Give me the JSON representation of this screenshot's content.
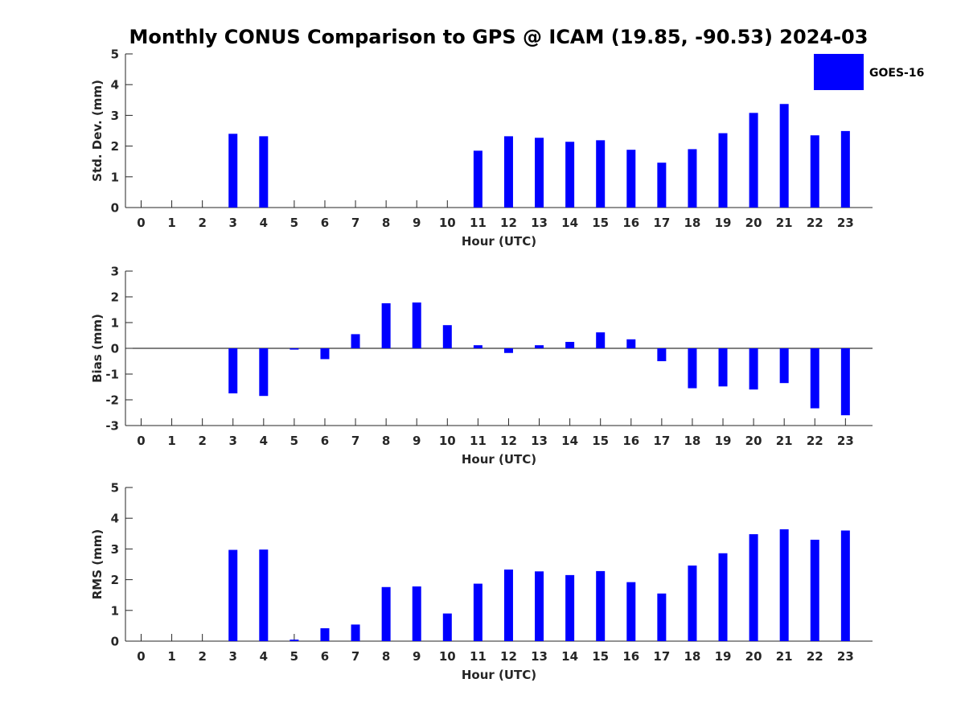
{
  "chart_data": [
    {
      "type": "bar",
      "title": "Monthly CONUS Comparison to GPS @ ICAM (19.85, -90.53) 2024-03",
      "xlabel": "Hour (UTC)",
      "ylabel": "Std. Dev. (mm)",
      "ylim": [
        0,
        5
      ],
      "yticks": [
        "0",
        "1",
        "2",
        "3",
        "4",
        "5"
      ],
      "categories": [
        "0",
        "1",
        "2",
        "3",
        "4",
        "5",
        "6",
        "7",
        "8",
        "9",
        "10",
        "11",
        "12",
        "13",
        "14",
        "15",
        "16",
        "17",
        "18",
        "19",
        "20",
        "21",
        "22",
        "23"
      ],
      "series": [
        {
          "name": "GOES-16",
          "color": "#0000ff",
          "values": [
            null,
            null,
            null,
            2.4,
            2.32,
            null,
            null,
            null,
            null,
            null,
            null,
            1.85,
            2.32,
            2.27,
            2.14,
            2.19,
            1.88,
            1.46,
            1.9,
            2.42,
            3.08,
            3.37,
            2.35,
            2.49
          ]
        }
      ],
      "legend": {
        "label": "GOES-16",
        "placement": "top-right"
      }
    },
    {
      "type": "bar",
      "title": "",
      "xlabel": "Hour (UTC)",
      "ylabel": "Bias (mm)",
      "ylim": [
        -3,
        3
      ],
      "yticks": [
        "-3",
        "-2",
        "-1",
        "0",
        "1",
        "2",
        "3"
      ],
      "categories": [
        "0",
        "1",
        "2",
        "3",
        "4",
        "5",
        "6",
        "7",
        "8",
        "9",
        "10",
        "11",
        "12",
        "13",
        "14",
        "15",
        "16",
        "17",
        "18",
        "19",
        "20",
        "21",
        "22",
        "23"
      ],
      "series": [
        {
          "name": "GOES-16",
          "color": "#0000ff",
          "values": [
            null,
            null,
            null,
            -1.75,
            -1.85,
            -0.05,
            -0.42,
            0.55,
            1.75,
            1.78,
            0.9,
            0.12,
            -0.18,
            0.12,
            0.25,
            0.62,
            0.35,
            -0.5,
            -1.55,
            -1.48,
            -1.6,
            -1.35,
            -2.33,
            -2.6
          ]
        }
      ]
    },
    {
      "type": "bar",
      "title": "",
      "xlabel": "Hour (UTC)",
      "ylabel": "RMS (mm)",
      "ylim": [
        0,
        5
      ],
      "yticks": [
        "0",
        "1",
        "2",
        "3",
        "4",
        "5"
      ],
      "categories": [
        "0",
        "1",
        "2",
        "3",
        "4",
        "5",
        "6",
        "7",
        "8",
        "9",
        "10",
        "11",
        "12",
        "13",
        "14",
        "15",
        "16",
        "17",
        "18",
        "19",
        "20",
        "21",
        "22",
        "23"
      ],
      "series": [
        {
          "name": "GOES-16",
          "color": "#0000ff",
          "values": [
            null,
            null,
            null,
            2.97,
            2.98,
            0.05,
            0.42,
            0.54,
            1.76,
            1.78,
            0.9,
            1.87,
            2.33,
            2.27,
            2.15,
            2.28,
            1.92,
            1.55,
            2.46,
            2.86,
            3.48,
            3.64,
            3.3,
            3.6
          ]
        }
      ]
    }
  ]
}
